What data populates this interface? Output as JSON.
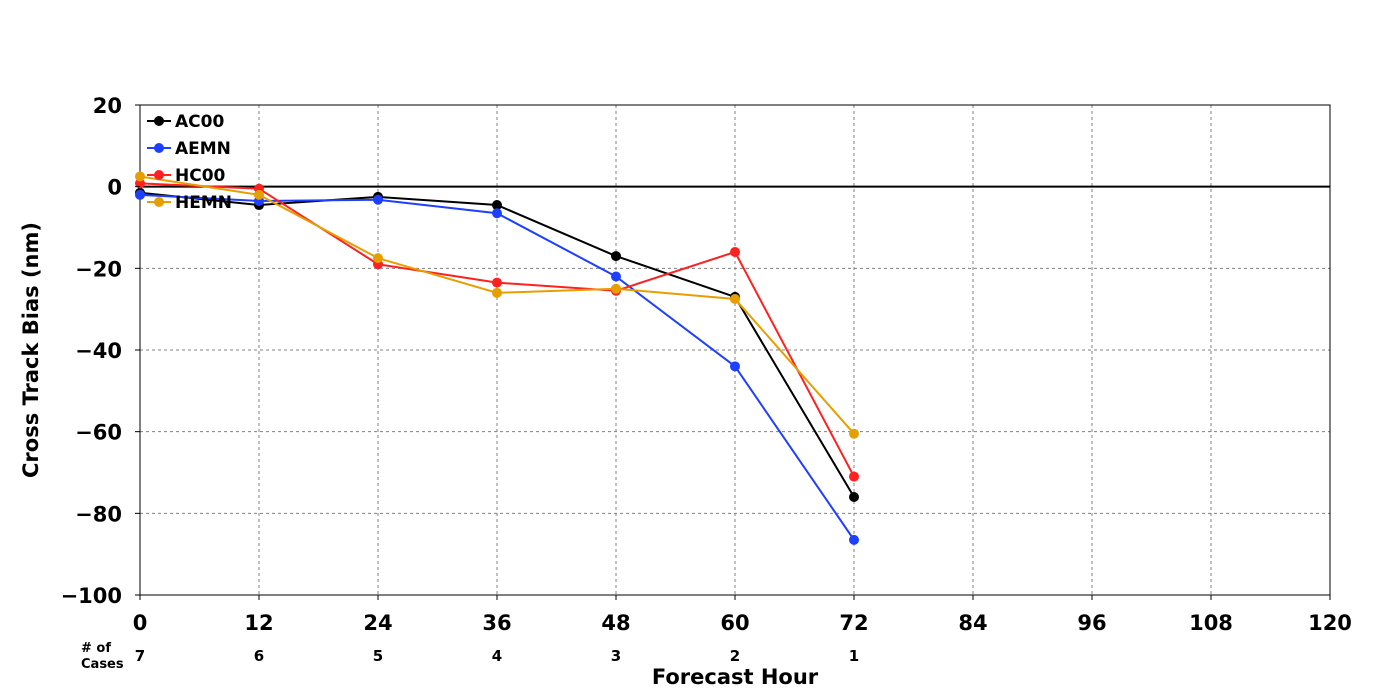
{
  "chart_data": {
    "type": "line",
    "xlabel": "Forecast Hour",
    "ylabel": "Cross Track Bias (nm)",
    "xlim": [
      0,
      120
    ],
    "ylim": [
      -100,
      20
    ],
    "xticks": [
      0,
      12,
      24,
      36,
      48,
      60,
      72,
      84,
      96,
      108,
      120
    ],
    "yticks": [
      20,
      0,
      -20,
      -40,
      -60,
      -80,
      -100
    ],
    "ytick_labels": [
      "20",
      "0",
      "−20",
      "−40",
      "−60",
      "−80",
      "−100"
    ],
    "grid": true,
    "zero_line": true,
    "legend_position": "top-left",
    "cases_header": [
      "# of",
      "Cases"
    ],
    "cases": [
      {
        "x": 0,
        "n": "7"
      },
      {
        "x": 12,
        "n": "6"
      },
      {
        "x": 24,
        "n": "5"
      },
      {
        "x": 36,
        "n": "4"
      },
      {
        "x": 48,
        "n": "3"
      },
      {
        "x": 60,
        "n": "2"
      },
      {
        "x": 72,
        "n": "1"
      }
    ],
    "x": [
      0,
      12,
      24,
      36,
      48,
      60,
      72
    ],
    "series": [
      {
        "name": "AC00",
        "color": "#000000",
        "values": [
          -1.5,
          -4.5,
          -2.5,
          -4.5,
          -17,
          -27,
          -76
        ]
      },
      {
        "name": "AEMN",
        "color": "#1f3fff",
        "values": [
          -2,
          -3.5,
          -3.2,
          -6.5,
          -22,
          -44,
          -86.5
        ]
      },
      {
        "name": "HC00",
        "color": "#ff2020",
        "values": [
          0.8,
          -0.5,
          -19,
          -23.5,
          -25.5,
          -16,
          -71
        ]
      },
      {
        "name": "HEMN",
        "color": "#e69f00",
        "values": [
          2.5,
          -2,
          -17.5,
          -26,
          -25,
          -27.5,
          -60.5
        ]
      }
    ]
  }
}
